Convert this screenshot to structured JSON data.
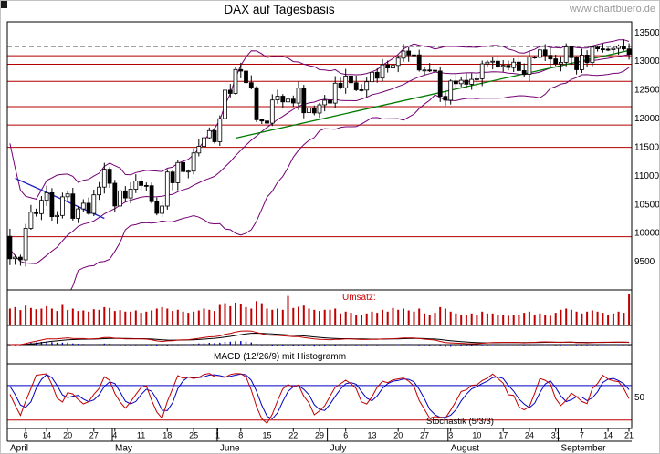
{
  "title": "DAX auf Tagesbasis",
  "watermark": "www.chartbuero.de",
  "labels": {
    "volume": "Umsatz:",
    "macd": "MACD (12/26/9) mit Histogramm",
    "stochastic": "Stochastik (5/3/3)"
  },
  "colors": {
    "up_candle": "#ffffff",
    "down_candle": "#000000",
    "candle_outline": "#000000",
    "bollinger": "#730073",
    "trend_green": "#007a00",
    "trend_blue": "#2222bb",
    "level_red": "#b40000",
    "dashed_level": "#444444",
    "volume": "#c00000",
    "macd_line": "#c00000",
    "macd_signal": "#000000",
    "macd_hist": "#0000bb",
    "stoch_k": "#c00000",
    "stoch_d": "#0000c0",
    "axis_text": "#000000",
    "watermark_gray": "#9a9a9a"
  },
  "chart_data": {
    "type": "candlestick",
    "title": "DAX auf Tagesbasis",
    "ylim": [
      9000,
      13680
    ],
    "y_axis_labels": [
      13500,
      13000,
      12500,
      12000,
      11500,
      11000,
      10500,
      10000,
      9500
    ],
    "closes": [
      9545,
      9571,
      9526,
      10075,
      10357,
      10333,
      10565,
      10697,
      10280,
      10301,
      10626,
      10676,
      10250,
      10415,
      10514,
      10336,
      10660,
      10796,
      11108,
      10862,
      10466,
      10730,
      10606,
      10759,
      10904,
      10825,
      10820,
      10542,
      10337,
      10465,
      11059,
      10871,
      11223,
      11066,
      11074,
      11391,
      11505,
      11657,
      11781,
      11587,
      11990,
      12487,
      12430,
      12847,
      12820,
      12618,
      12530,
      11970,
      11949,
      11911,
      12316,
      12382,
      12281,
      12331,
      12262,
      12523,
      12094,
      12177,
      12089,
      12232,
      12311,
      12261,
      12608,
      12529,
      12734,
      12617,
      12495,
      12489,
      12634,
      12800,
      12697,
      12930,
      12874,
      12920,
      13047,
      13171,
      13104,
      13103,
      12838,
      12839,
      12835,
      12822,
      12380,
      12313,
      12647,
      12601,
      12660,
      12591,
      12675,
      12687,
      12946,
      12977,
      12993,
      12901,
      12920,
      12882,
      12977,
      12830,
      12765,
      13066,
      13061,
      13190,
      13096,
      13033,
      12945,
      12974,
      13243,
      13057,
      12843,
      13100,
      12968,
      13237,
      13209,
      13203,
      13194,
      13217,
      13255,
      13208,
      13116
    ],
    "warmup_closes": [
      11857,
      11985,
      12128,
      11945,
      11542,
      10625,
      10476,
      10439,
      9161,
      9232,
      8742,
      8939,
      8441,
      8610,
      8929,
      8741,
      9700,
      9874,
      10001,
      9632,
      9816,
      9936
    ],
    "volumes_rel": [
      0.5,
      0.55,
      0.45,
      0.6,
      0.52,
      0.48,
      0.5,
      0.58,
      0.5,
      0.42,
      0.62,
      0.45,
      0.5,
      0.42,
      0.44,
      0.4,
      0.48,
      0.46,
      0.55,
      0.52,
      0.42,
      0.45,
      0.4,
      0.4,
      0.44,
      0.36,
      0.4,
      0.44,
      0.5,
      0.55,
      0.5,
      0.42,
      0.46,
      0.4,
      0.36,
      0.4,
      0.44,
      0.5,
      0.46,
      0.42,
      0.62,
      0.68,
      0.58,
      0.7,
      0.64,
      0.55,
      0.5,
      0.75,
      0.68,
      0.5,
      0.46,
      0.5,
      0.46,
      0.92,
      0.52,
      0.56,
      0.6,
      0.5,
      0.46,
      0.42,
      0.46,
      0.46,
      0.5,
      0.34,
      0.4,
      0.36,
      0.3,
      0.3,
      0.34,
      0.4,
      0.36,
      0.46,
      0.4,
      0.52,
      0.46,
      0.5,
      0.44,
      0.4,
      0.5,
      0.34,
      0.3,
      0.36,
      0.55,
      0.5,
      0.4,
      0.34,
      0.3,
      0.3,
      0.34,
      0.28,
      0.4,
      0.34,
      0.34,
      0.3,
      0.3,
      0.26,
      0.3,
      0.3,
      0.36,
      0.4,
      0.3,
      0.34,
      0.3,
      0.26,
      0.36,
      0.46,
      0.5,
      0.46,
      0.4,
      0.34,
      0.4,
      0.44,
      0.4,
      0.36,
      0.3,
      0.34,
      0.4,
      0.36,
      1.0
    ],
    "horizontal_levels": [
      13090,
      12940,
      12640,
      12200,
      11880,
      11490,
      9930
    ],
    "dashed_level": 13250,
    "trendlines": [
      {
        "color_key": "trend_green",
        "from_index": 43,
        "from_price": 11650,
        "to_index": 118,
        "to_price": 13180
      },
      {
        "color_key": "trend_blue",
        "from_index": 1,
        "from_price": 10950,
        "to_index": 18,
        "to_price": 10250
      }
    ],
    "indicators": {
      "bollinger_period": 20,
      "bollinger_stddev": 2,
      "macd": [
        12,
        26,
        9
      ],
      "stochastic": [
        5,
        3,
        3
      ],
      "stoch_overbought": 70,
      "stoch_oversold": 10,
      "stoch_mid_label": "50"
    },
    "x_axis": {
      "week_ticks": [
        {
          "label": "6",
          "i": 3
        },
        {
          "label": "14",
          "i": 7
        },
        {
          "label": "20",
          "i": 11
        },
        {
          "label": "27",
          "i": 16
        },
        {
          "label": "4",
          "i": 20
        },
        {
          "label": "11",
          "i": 25
        },
        {
          "label": "18",
          "i": 30
        },
        {
          "label": "25",
          "i": 35
        },
        {
          "label": "1",
          "i": 39.6
        },
        {
          "label": "8",
          "i": 44
        },
        {
          "label": "15",
          "i": 49
        },
        {
          "label": "22",
          "i": 54
        },
        {
          "label": "29",
          "i": 59
        },
        {
          "label": "6",
          "i": 64
        },
        {
          "label": "13",
          "i": 69
        },
        {
          "label": "20",
          "i": 74
        },
        {
          "label": "27",
          "i": 79
        },
        {
          "label": "3",
          "i": 84
        },
        {
          "label": "10",
          "i": 89
        },
        {
          "label": "17",
          "i": 94
        },
        {
          "label": "24",
          "i": 99
        },
        {
          "label": "31",
          "i": 104
        },
        {
          "label": "7",
          "i": 109
        },
        {
          "label": "14",
          "i": 114
        },
        {
          "label": "21",
          "i": 118.4
        }
      ],
      "months": [
        {
          "label": "April",
          "i": 0
        },
        {
          "label": "May",
          "i": 20
        },
        {
          "label": "June",
          "i": 40
        },
        {
          "label": "July",
          "i": 61
        },
        {
          "label": "August",
          "i": 84
        },
        {
          "label": "September",
          "i": 105
        }
      ]
    }
  }
}
